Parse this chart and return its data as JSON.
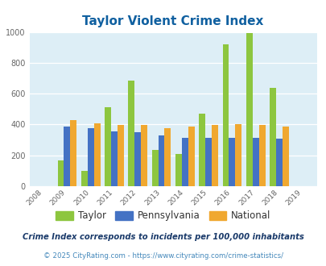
{
  "title": "Taylor Violent Crime Index",
  "years": [
    2008,
    2009,
    2010,
    2011,
    2012,
    2013,
    2014,
    2015,
    2016,
    2017,
    2018,
    2019
  ],
  "taylor": [
    null,
    165,
    100,
    510,
    685,
    235,
    210,
    470,
    920,
    995,
    640,
    null
  ],
  "pennsylvania": [
    null,
    385,
    375,
    355,
    350,
    330,
    315,
    315,
    315,
    315,
    308,
    null
  ],
  "national": [
    null,
    430,
    408,
    395,
    395,
    375,
    385,
    395,
    402,
    398,
    388,
    null
  ],
  "taylor_color": "#8dc63f",
  "penn_color": "#4472c4",
  "national_color": "#f0a830",
  "bg_color": "#ddeef6",
  "ylim": [
    0,
    1000
  ],
  "yticks": [
    0,
    200,
    400,
    600,
    800,
    1000
  ],
  "footnote1": "Crime Index corresponds to incidents per 100,000 inhabitants",
  "footnote2": "© 2025 CityRating.com - https://www.cityrating.com/crime-statistics/",
  "title_color": "#1060a0",
  "footnote1_color": "#1a3a6a",
  "footnote2_color": "#4488bb",
  "legend_labels": [
    "Taylor",
    "Pennsylvania",
    "National"
  ],
  "legend_text_color": "#333333",
  "bar_width": 0.27
}
